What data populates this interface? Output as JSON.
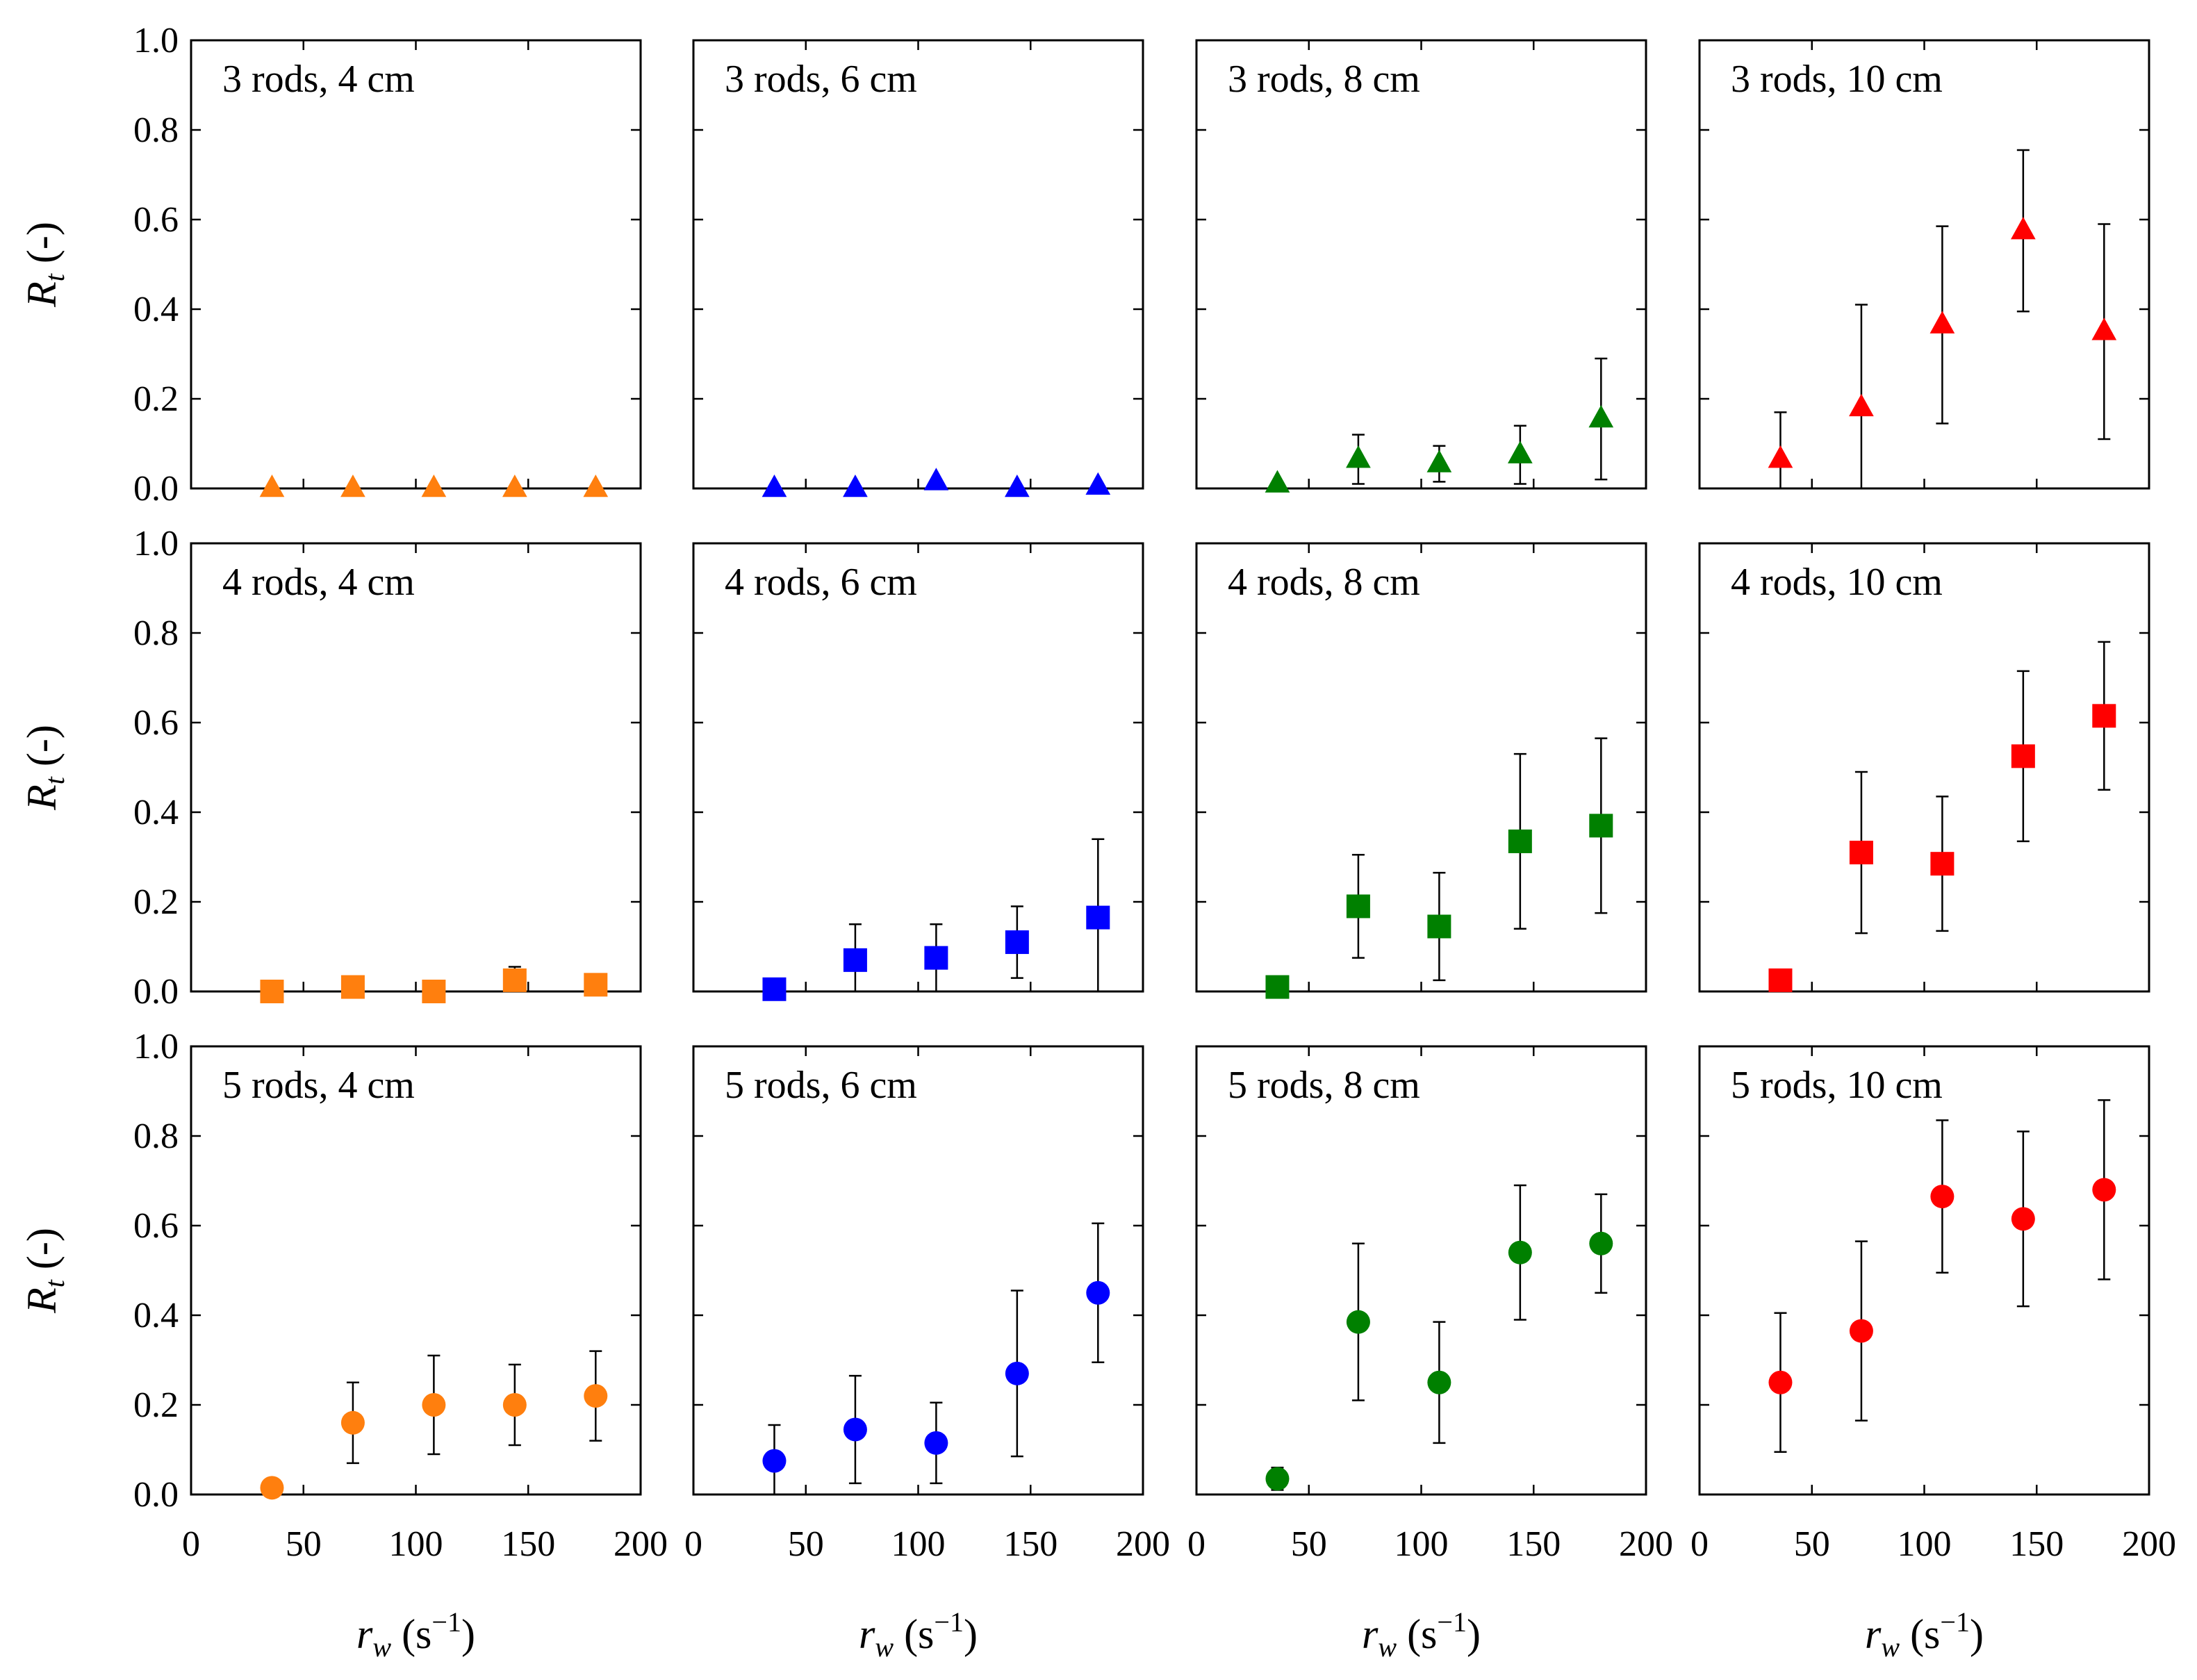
{
  "chart_data": {
    "type": "scatter",
    "layout": "3x4 small multiples",
    "xlabel": {
      "var": "r",
      "sub": "w",
      "unit": "(s",
      "exp": "−1",
      "close": ")"
    },
    "ylabel": {
      "var": "R",
      "sub": "t",
      "unit": "(-)"
    },
    "xlim": [
      0,
      200
    ],
    "ylim": [
      0,
      1.0
    ],
    "xticks": [
      0,
      50,
      100,
      150,
      200
    ],
    "xtick_labels": [
      "0",
      "50",
      "100",
      "150",
      "200"
    ],
    "yticks": [
      0,
      0.2,
      0.4,
      0.6,
      0.8,
      1.0
    ],
    "ytick_labels": [
      "0.0",
      "0.2",
      "0.4",
      "0.6",
      "0.8",
      "1.0"
    ],
    "colors": {
      "4 cm": "#ff7f0e",
      "6 cm": "#0000ff",
      "8 cm": "#008000",
      "10 cm": "#ff0000"
    },
    "markers": {
      "3 rods": "triangle",
      "4 rods": "square",
      "5 rods": "circle"
    },
    "x": [
      36,
      72,
      108,
      144,
      180
    ],
    "panels": [
      {
        "title": "3 rods, 4 cm",
        "rods": "3 rods",
        "spacing": "4 cm",
        "y": [
          0.0,
          0.0,
          0.0,
          0.0,
          0.0
        ],
        "err": [
          0,
          0,
          0,
          0,
          0
        ]
      },
      {
        "title": "3 rods, 6 cm",
        "rods": "3 rods",
        "spacing": "6 cm",
        "y": [
          0.0,
          0.0,
          0.015,
          0.0,
          0.005
        ],
        "err": [
          0,
          0,
          0,
          0,
          0
        ]
      },
      {
        "title": "3 rods, 8 cm",
        "rods": "3 rods",
        "spacing": "8 cm",
        "y": [
          0.01,
          0.065,
          0.055,
          0.075,
          0.155
        ],
        "err": [
          0,
          0.055,
          0.04,
          0.065,
          0.135
        ]
      },
      {
        "title": "3 rods, 10 cm",
        "rods": "3 rods",
        "spacing": "10 cm",
        "y": [
          0.065,
          0.18,
          0.365,
          0.575,
          0.35
        ],
        "err": [
          0.105,
          0.23,
          0.22,
          0.18,
          0.24
        ]
      },
      {
        "title": "4 rods, 4 cm",
        "rods": "4 rods",
        "spacing": "4 cm",
        "y": [
          0.0,
          0.01,
          0.0,
          0.025,
          0.015
        ],
        "err": [
          0,
          0,
          0,
          0.03,
          0
        ]
      },
      {
        "title": "4 rods, 6 cm",
        "rods": "4 rods",
        "spacing": "6 cm",
        "y": [
          0.005,
          0.07,
          0.075,
          0.11,
          0.165
        ],
        "err": [
          0,
          0.08,
          0.075,
          0.08,
          0.175
        ]
      },
      {
        "title": "4 rods, 8 cm",
        "rods": "4 rods",
        "spacing": "8 cm",
        "y": [
          0.01,
          0.19,
          0.145,
          0.335,
          0.37
        ],
        "err": [
          0,
          0.115,
          0.12,
          0.195,
          0.195
        ]
      },
      {
        "title": "4 rods, 10 cm",
        "rods": "4 rods",
        "spacing": "10 cm",
        "y": [
          0.025,
          0.31,
          0.285,
          0.525,
          0.615
        ],
        "err": [
          0,
          0.18,
          0.15,
          0.19,
          0.165
        ]
      },
      {
        "title": "5 rods, 4 cm",
        "rods": "5 rods",
        "spacing": "4 cm",
        "y": [
          0.015,
          0.16,
          0.2,
          0.2,
          0.22
        ],
        "err": [
          0,
          0.09,
          0.11,
          0.09,
          0.1
        ]
      },
      {
        "title": "5 rods, 6 cm",
        "rods": "5 rods",
        "spacing": "6 cm",
        "y": [
          0.075,
          0.145,
          0.115,
          0.27,
          0.45
        ],
        "err": [
          0.08,
          0.12,
          0.09,
          0.185,
          0.155
        ]
      },
      {
        "title": "5 rods, 8 cm",
        "rods": "5 rods",
        "spacing": "8 cm",
        "y": [
          0.035,
          0.385,
          0.25,
          0.54,
          0.56
        ],
        "err": [
          0.025,
          0.175,
          0.135,
          0.15,
          0.11
        ]
      },
      {
        "title": "5 rods, 10 cm",
        "rods": "5 rods",
        "spacing": "10 cm",
        "y": [
          0.25,
          0.365,
          0.665,
          0.615,
          0.68
        ],
        "err": [
          0.155,
          0.2,
          0.17,
          0.195,
          0.2
        ]
      }
    ],
    "grid": false,
    "legend": "none"
  }
}
